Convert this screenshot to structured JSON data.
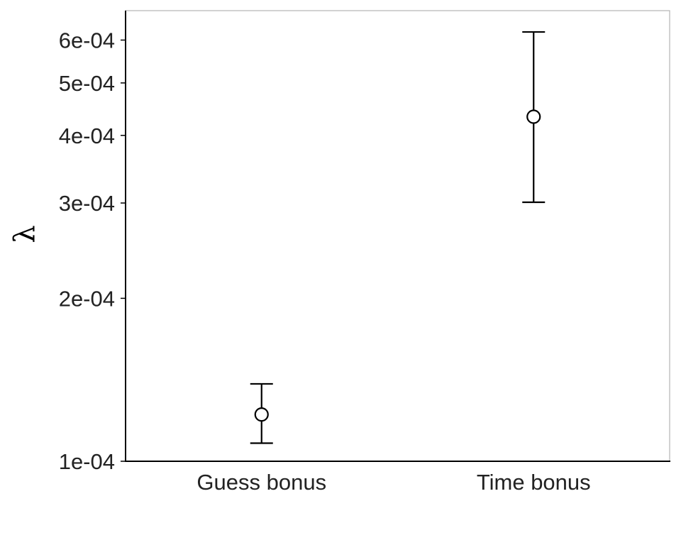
{
  "chart_data": {
    "type": "scatter",
    "title": "",
    "xlabel": "",
    "ylabel": "λ",
    "categories": [
      "Guess bonus",
      "Time bonus"
    ],
    "y_scale": "log",
    "ylim": [
      0.0001,
      0.00068
    ],
    "y_ticks": [
      {
        "value": 0.0001,
        "label": "1e-04"
      },
      {
        "value": 0.0002,
        "label": "2e-04"
      },
      {
        "value": 0.0003,
        "label": "3e-04"
      },
      {
        "value": 0.0004,
        "label": "4e-04"
      },
      {
        "value": 0.0005,
        "label": "5e-04"
      },
      {
        "value": 0.0006,
        "label": "6e-04"
      }
    ],
    "points": [
      {
        "category": "Guess bonus",
        "y": 0.000122,
        "lower": 0.000108,
        "upper": 0.000139
      },
      {
        "category": "Time bonus",
        "y": 0.000433,
        "lower": 0.000301,
        "upper": 0.000621
      }
    ],
    "grid": false,
    "legend": "none",
    "colors": {
      "mark": "#000000",
      "marker_fill": "#ffffff",
      "text": "#222222",
      "frame": "#b3b3b3"
    }
  }
}
